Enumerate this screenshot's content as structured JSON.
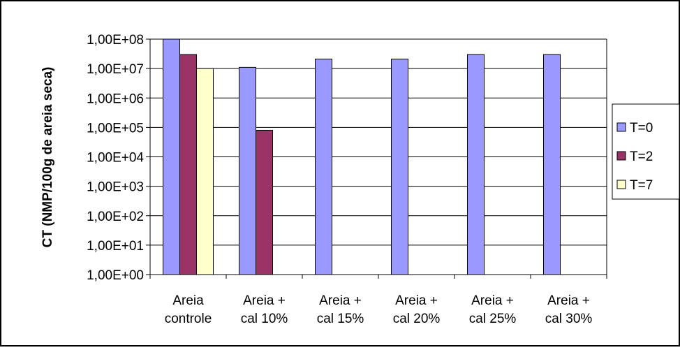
{
  "chart_data": {
    "type": "bar",
    "scale": "log10",
    "title": "",
    "ylabel": "CT (NMP/100g de areia seca)",
    "xlabel": "",
    "ylim": [
      1,
      100000000
    ],
    "y_ticks": [
      "1,00E+00",
      "1,00E+01",
      "1,00E+02",
      "1,00E+03",
      "1,00E+04",
      "1,00E+05",
      "1,00E+06",
      "1,00E+07",
      "1,00E+08"
    ],
    "categories": [
      [
        "Areia",
        "controle"
      ],
      [
        "Areia +",
        "cal 10%"
      ],
      [
        "Areia +",
        "cal 15%"
      ],
      [
        "Areia +",
        "cal 20%"
      ],
      [
        "Areia +",
        "cal 25%"
      ],
      [
        "Areia +",
        "cal 30%"
      ]
    ],
    "series": [
      {
        "name": "T=0",
        "color": "#9999ff",
        "values": [
          100000000,
          11000000,
          21000000,
          21000000,
          30000000,
          30000000
        ]
      },
      {
        "name": "T=2",
        "color": "#993366",
        "values": [
          30000000,
          80000,
          null,
          null,
          null,
          null
        ]
      },
      {
        "name": "T=7",
        "color": "#ffffcc",
        "values": [
          10000000,
          null,
          null,
          null,
          null,
          null
        ]
      }
    ],
    "grid": "horizontal",
    "legend_position": "right"
  }
}
